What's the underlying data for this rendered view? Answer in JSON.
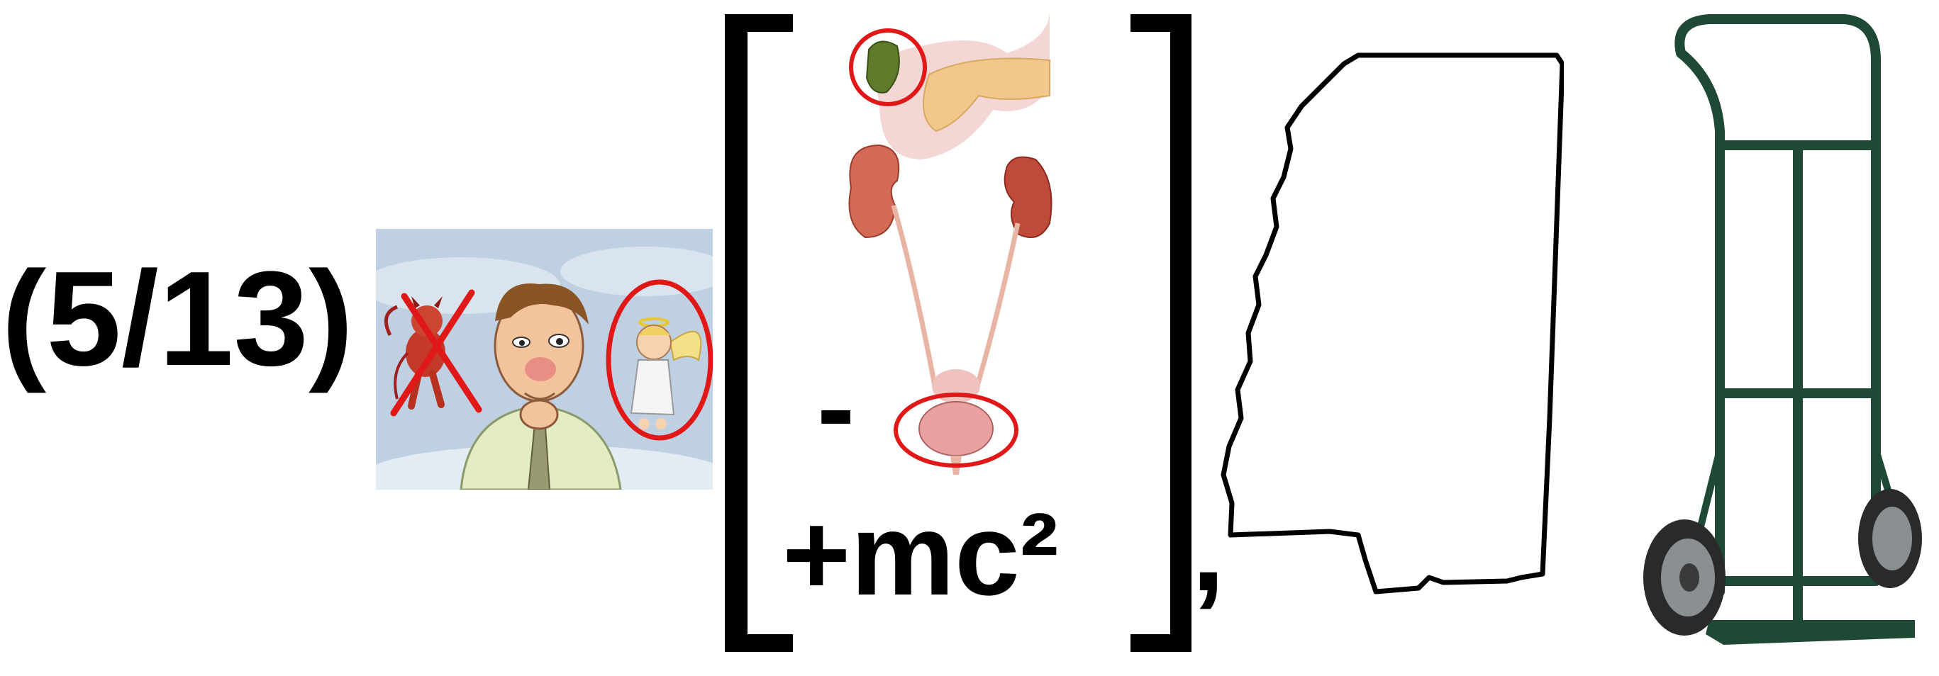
{
  "rebus": {
    "fraction_text": "(5/13)",
    "minus_text": "-",
    "mc2_text": "+mc²",
    "comma_text": ","
  },
  "icons": {
    "conscience_picture": "angel-devil-conscience-icon",
    "cross_mark": "red-x-icon",
    "highlight_circle": "red-circle-icon",
    "organs_picture": "urinary-organs-icon",
    "state_outline": "mississippi-outline-icon",
    "hand_truck": "hand-truck-icon",
    "left_bracket": "left-bracket-icon",
    "right_bracket": "right-bracket-icon"
  },
  "colors": {
    "text": "#000000",
    "highlight": "#e01818",
    "sky": "#b8cbe0",
    "truck": "#1e4a35"
  }
}
